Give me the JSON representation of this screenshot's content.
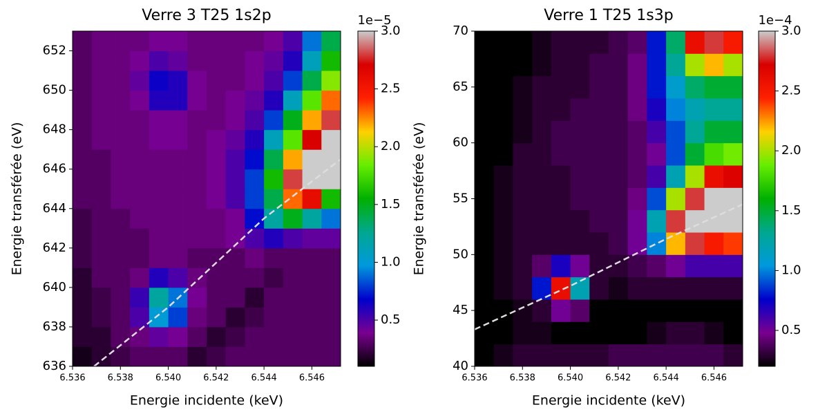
{
  "chart_data": [
    {
      "type": "heatmap",
      "title": "Verre 3 T25 1s2p",
      "xlabel": "Energie incidente (keV)",
      "ylabel": "Energie transférée (eV)",
      "x": [
        6.5364,
        6.5372,
        6.538,
        6.5388,
        6.5396,
        6.5404,
        6.5412,
        6.542,
        6.5428,
        6.5436,
        6.5444,
        6.5452,
        6.546,
        6.5468
      ],
      "y": [
        636.5,
        637.5,
        638.5,
        639.5,
        640.5,
        641.5,
        642.5,
        643.5,
        644.5,
        645.5,
        646.5,
        647.5,
        648.5,
        649.5,
        650.5,
        651.5,
        652.5
      ],
      "z": [
        [
          0.15,
          0.2,
          0.25,
          0.3,
          0.3,
          0.3,
          0.2,
          0.25,
          0.3,
          0.3,
          0.3,
          0.3,
          0.3,
          0.3
        ],
        [
          0.2,
          0.2,
          0.3,
          0.35,
          0.45,
          0.4,
          0.3,
          0.2,
          0.25,
          0.3,
          0.3,
          0.3,
          0.3,
          0.3
        ],
        [
          0.2,
          0.25,
          0.3,
          0.5,
          1.0,
          0.8,
          0.35,
          0.3,
          0.2,
          0.25,
          0.3,
          0.3,
          0.3,
          0.3
        ],
        [
          0.2,
          0.25,
          0.3,
          0.55,
          1.2,
          0.9,
          0.4,
          0.3,
          0.3,
          0.2,
          0.3,
          0.3,
          0.3,
          0.3
        ],
        [
          0.2,
          0.3,
          0.3,
          0.35,
          0.6,
          0.5,
          0.35,
          0.3,
          0.3,
          0.3,
          0.25,
          0.3,
          0.3,
          0.3
        ],
        [
          0.25,
          0.3,
          0.3,
          0.3,
          0.35,
          0.35,
          0.3,
          0.3,
          0.3,
          0.35,
          0.3,
          0.3,
          0.3,
          0.3
        ],
        [
          0.25,
          0.3,
          0.3,
          0.3,
          0.35,
          0.35,
          0.35,
          0.35,
          0.4,
          0.5,
          0.6,
          0.5,
          0.45,
          0.45
        ],
        [
          0.25,
          0.3,
          0.3,
          0.35,
          0.35,
          0.35,
          0.35,
          0.35,
          0.4,
          0.7,
          1.2,
          1.5,
          1.2,
          0.9
        ],
        [
          0.3,
          0.3,
          0.35,
          0.35,
          0.35,
          0.35,
          0.35,
          0.4,
          0.5,
          0.8,
          1.4,
          2.3,
          2.6,
          1.6
        ],
        [
          0.3,
          0.3,
          0.35,
          0.35,
          0.35,
          0.35,
          0.35,
          0.4,
          0.5,
          0.8,
          1.6,
          2.8,
          3.0,
          3.0
        ],
        [
          0.3,
          0.3,
          0.35,
          0.35,
          0.35,
          0.35,
          0.35,
          0.4,
          0.5,
          0.7,
          1.4,
          2.2,
          3.0,
          3.0
        ],
        [
          0.3,
          0.35,
          0.35,
          0.35,
          0.4,
          0.4,
          0.35,
          0.4,
          0.45,
          0.6,
          1.1,
          1.8,
          2.7,
          3.0
        ],
        [
          0.3,
          0.35,
          0.35,
          0.35,
          0.4,
          0.4,
          0.35,
          0.35,
          0.4,
          0.5,
          0.8,
          1.5,
          2.2,
          2.8
        ],
        [
          0.3,
          0.35,
          0.35,
          0.4,
          0.6,
          0.6,
          0.4,
          0.35,
          0.4,
          0.45,
          0.6,
          1.1,
          1.8,
          2.3
        ],
        [
          0.3,
          0.35,
          0.35,
          0.45,
          0.65,
          0.6,
          0.4,
          0.35,
          0.35,
          0.4,
          0.5,
          0.8,
          1.4,
          1.9
        ],
        [
          0.3,
          0.35,
          0.35,
          0.4,
          0.5,
          0.45,
          0.35,
          0.35,
          0.35,
          0.4,
          0.45,
          0.6,
          1.1,
          1.6
        ],
        [
          0.3,
          0.35,
          0.35,
          0.35,
          0.4,
          0.4,
          0.35,
          0.35,
          0.35,
          0.35,
          0.4,
          0.5,
          0.9,
          1.4
        ]
      ],
      "xlim": [
        6.536,
        6.5472
      ],
      "ylim": [
        636,
        653
      ],
      "xticks": [
        6.536,
        6.538,
        6.54,
        6.542,
        6.544,
        6.546
      ],
      "yticks": [
        636,
        638,
        640,
        642,
        644,
        646,
        648,
        650,
        652
      ],
      "xtick_labels_fixed": [
        "6.536",
        "6.538",
        "6.540",
        "6.542",
        "6.544",
        "6.546"
      ],
      "clim": [
        0.1,
        3.0
      ],
      "cticks": [
        0.5,
        {
          "value": 1,
          "label": "1.0"
        },
        1.5,
        {
          "value": 2,
          "label": "2.0"
        },
        2.5,
        {
          "value": 3,
          "label": "3.0"
        }
      ],
      "offset_label": "1e−5",
      "colormap": [
        "#000000",
        "#7a0090",
        "#0000cc",
        "#0099dd",
        "#00a890",
        "#00b000",
        "#66ee00",
        "#ffd000",
        "#ff2000",
        "#d80000",
        "#cccccc"
      ],
      "line": {
        "x": [
          6.5369,
          6.54,
          6.544,
          6.5472
        ],
        "y": [
          636.0,
          639.0,
          643.5,
          646.5
        ],
        "color": "#dddddd"
      }
    },
    {
      "type": "heatmap",
      "title": "Verre 1 T25 1s3p",
      "xlabel": "Energie incidente (keV)",
      "ylabel": "Energie transférée (eV)",
      "x": [
        6.5364,
        6.5372,
        6.538,
        6.5388,
        6.5396,
        6.5404,
        6.5412,
        6.542,
        6.5428,
        6.5436,
        6.5444,
        6.5452,
        6.546,
        6.5468
      ],
      "y": [
        41,
        43,
        45,
        47,
        49,
        51,
        53,
        55,
        57,
        59,
        61,
        63,
        65,
        67,
        69
      ],
      "z": [
        [
          0.2,
          0.25,
          0.3,
          0.3,
          0.3,
          0.3,
          0.3,
          0.35,
          0.35,
          0.35,
          0.35,
          0.35,
          0.35,
          0.3
        ],
        [
          0.2,
          0.2,
          0.25,
          0.25,
          0.2,
          0.2,
          0.2,
          0.2,
          0.2,
          0.25,
          0.3,
          0.3,
          0.25,
          0.2
        ],
        [
          0.2,
          0.2,
          0.25,
          0.3,
          0.5,
          0.4,
          0.2,
          0.2,
          0.2,
          0.2,
          0.2,
          0.2,
          0.2,
          0.2
        ],
        [
          0.2,
          0.25,
          0.3,
          0.8,
          2.6,
          1.2,
          0.3,
          0.25,
          0.3,
          0.3,
          0.3,
          0.3,
          0.3,
          0.3
        ],
        [
          0.2,
          0.25,
          0.3,
          0.4,
          0.7,
          0.5,
          0.3,
          0.3,
          0.35,
          0.4,
          0.5,
          0.6,
          0.6,
          0.6
        ],
        [
          0.2,
          0.25,
          0.3,
          0.3,
          0.3,
          0.3,
          0.3,
          0.35,
          0.5,
          1.0,
          2.2,
          2.8,
          2.5,
          2.4
        ],
        [
          0.2,
          0.25,
          0.3,
          0.3,
          0.3,
          0.3,
          0.35,
          0.35,
          0.5,
          1.2,
          2.8,
          3.0,
          3.0,
          3.0
        ],
        [
          0.2,
          0.25,
          0.3,
          0.3,
          0.3,
          0.35,
          0.35,
          0.35,
          0.45,
          0.9,
          2.0,
          2.8,
          3.0,
          3.0
        ],
        [
          0.2,
          0.25,
          0.3,
          0.3,
          0.3,
          0.35,
          0.35,
          0.35,
          0.4,
          0.6,
          1.2,
          2.0,
          2.6,
          2.7
        ],
        [
          0.2,
          0.2,
          0.3,
          0.3,
          0.35,
          0.35,
          0.35,
          0.35,
          0.4,
          0.5,
          0.9,
          1.5,
          1.8,
          1.9
        ],
        [
          0.2,
          0.2,
          0.25,
          0.3,
          0.35,
          0.35,
          0.35,
          0.35,
          0.4,
          0.6,
          0.9,
          1.3,
          1.5,
          1.5
        ],
        [
          0.2,
          0.2,
          0.25,
          0.3,
          0.3,
          0.35,
          0.35,
          0.35,
          0.45,
          0.7,
          1.0,
          1.2,
          1.3,
          1.3
        ],
        [
          0.2,
          0.2,
          0.25,
          0.3,
          0.3,
          0.3,
          0.35,
          0.35,
          0.45,
          0.8,
          1.1,
          1.4,
          1.5,
          1.5
        ],
        [
          0.2,
          0.2,
          0.2,
          0.25,
          0.3,
          0.3,
          0.35,
          0.35,
          0.45,
          0.8,
          1.3,
          2.0,
          2.2,
          2.0
        ],
        [
          0.2,
          0.2,
          0.2,
          0.25,
          0.3,
          0.3,
          0.3,
          0.35,
          0.4,
          0.8,
          1.4,
          2.6,
          2.8,
          2.5
        ]
      ],
      "xlim": [
        6.536,
        6.5472
      ],
      "ylim": [
        40,
        70
      ],
      "xticks": [
        6.536,
        6.538,
        6.54,
        6.542,
        6.544,
        6.546
      ],
      "yticks": [
        40,
        45,
        50,
        55,
        60,
        65,
        70
      ],
      "xtick_labels_fixed": [
        "6.536",
        "6.538",
        "6.540",
        "6.542",
        "6.544",
        "6.546"
      ],
      "clim": [
        0.2,
        3.0
      ],
      "cticks": [
        0.5,
        {
          "value": 1,
          "label": "1.0"
        },
        1.5,
        {
          "value": 2,
          "label": "2.0"
        },
        2.5,
        {
          "value": 3,
          "label": "3.0"
        }
      ],
      "offset_label": "1e−4",
      "colormap": [
        "#000000",
        "#7a0090",
        "#0000cc",
        "#0099dd",
        "#00a890",
        "#00b000",
        "#66ee00",
        "#ffd000",
        "#ff2000",
        "#d80000",
        "#cccccc"
      ],
      "line": {
        "x": [
          6.536,
          6.54,
          6.544,
          6.5472
        ],
        "y": [
          43.3,
          47.2,
          51.4,
          54.5
        ],
        "color": "#dddddd"
      }
    }
  ]
}
